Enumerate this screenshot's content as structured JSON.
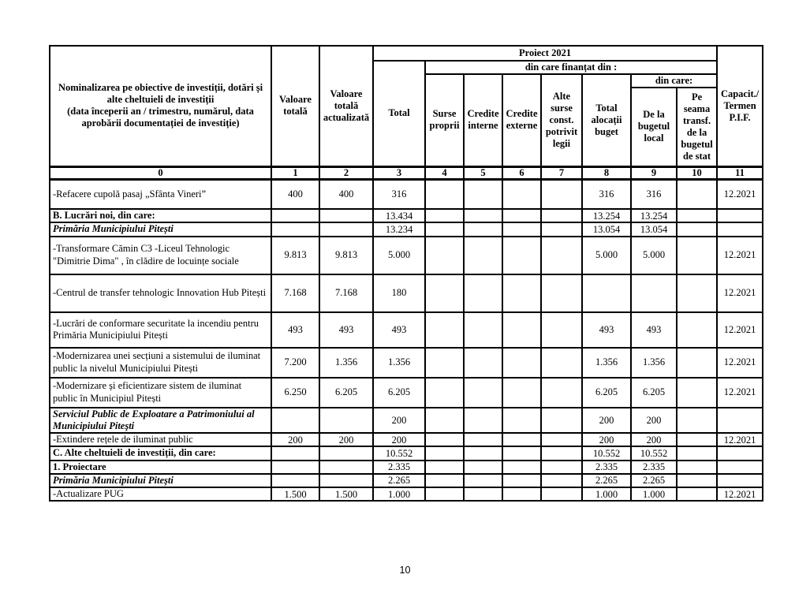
{
  "table": {
    "header": {
      "nominalizarea": "Nominalizarea pe obiective de investiții, dotări și\nalte cheltuieli de investiții\n(data începerii an / trimestru,  numărul, data\naprobării documentației de investiție)",
      "valoare_totala": "Valoare\ntotală",
      "valoare_actualizata": "Valoare\ntotală\nactualizată",
      "proiect_2021": "Proiect 2021",
      "din_care_finantat": "din care finanțat din :",
      "total": "Total",
      "surse_proprii": "Surse\nproprii",
      "credite_interne": "Credite\ninterne",
      "credite_externe": "Credite\nexterne",
      "alte_surse": "Alte\nsurse\nconst.\npotrivit\nlegii",
      "total_alocatii": "Total\nalocații\nbuget",
      "din_care": "din care:",
      "de_la_bugetul_local": "De la\nbugetul\nlocal",
      "pe_seama_transf": "Pe\nseama\ntransf.\nde la\nbugetul\nde stat",
      "capacit_termen": "Capacit./\nTermen\nP.I.F."
    },
    "col_numbers": [
      "0",
      "1",
      "2",
      "3",
      "4",
      "5",
      "6",
      "7",
      "8",
      "9",
      "10",
      "11"
    ],
    "rows": [
      {
        "kind": "item",
        "label": "-Refacere cupolă pasaj „Sfânta Vineri”",
        "cells": [
          "400",
          "400",
          "316",
          "",
          "",
          "",
          "",
          "316",
          "316",
          "",
          "12.2021"
        ]
      },
      {
        "kind": "section",
        "label": "B. Lucrări noi, din care:",
        "cells": [
          "",
          "",
          "13.434",
          "",
          "",
          "",
          "",
          "13.254",
          "13.254",
          "",
          ""
        ]
      },
      {
        "kind": "entity",
        "label": "Primăria Municipiului Pitești",
        "cells": [
          "",
          "",
          "13.234",
          "",
          "",
          "",
          "",
          "13.054",
          "13.054",
          "",
          ""
        ]
      },
      {
        "kind": "item",
        "label": "-Transformare Cămin C3 -Liceul Tehnologic \"Dimitrie Dima\" , în clădire de locuințe sociale",
        "cells": [
          "9.813",
          "9.813",
          "5.000",
          "",
          "",
          "",
          "",
          "5.000",
          "5.000",
          "",
          "12.2021"
        ]
      },
      {
        "kind": "item",
        "label": "-Centrul de transfer tehnologic Innovation Hub Pitești",
        "cells": [
          "7.168",
          "7.168",
          "180",
          "",
          "",
          "",
          "",
          "",
          "",
          "",
          "12.2021"
        ]
      },
      {
        "kind": "item",
        "label": "-Lucrări de conformare securitate la incendiu pentru Primăria Municipiului Pitești",
        "cells": [
          "493",
          "493",
          "493",
          "",
          "",
          "",
          "",
          "493",
          "493",
          "",
          "12.2021"
        ]
      },
      {
        "kind": "item",
        "label": "-Modernizarea unei secțiuni a sistemului de iluminat public la nivelul Municipiului Pitești",
        "cells": [
          "7.200",
          "1.356",
          "1.356",
          "",
          "",
          "",
          "",
          "1.356",
          "1.356",
          "",
          "12.2021"
        ]
      },
      {
        "kind": "item",
        "label": "-Modernizare și eficientizare  sistem de iluminat public în Municipiul Pitești",
        "cells": [
          "6.250",
          "6.205",
          "6.205",
          "",
          "",
          "",
          "",
          "6.205",
          "6.205",
          "",
          "12.2021"
        ]
      },
      {
        "kind": "entity",
        "label": "Serviciul Public de Exploatare a Patrimoniului al Municipiului Piteşti",
        "cells": [
          "",
          "",
          "200",
          "",
          "",
          "",
          "",
          "200",
          "200",
          "",
          ""
        ]
      },
      {
        "kind": "item",
        "label": "-Extindere rețele de iluminat public",
        "cells": [
          "200",
          "200",
          "200",
          "",
          "",
          "",
          "",
          "200",
          "200",
          "",
          "12.2021"
        ]
      },
      {
        "kind": "section",
        "label": "C. Alte cheltuieli de investiții, din care:",
        "cells": [
          "",
          "",
          "10.552",
          "",
          "",
          "",
          "",
          "10.552",
          "10.552",
          "",
          ""
        ]
      },
      {
        "kind": "section",
        "label": "1. Proiectare",
        "cells": [
          "",
          "",
          "2.335",
          "",
          "",
          "",
          "",
          "2.335",
          "2.335",
          "",
          ""
        ]
      },
      {
        "kind": "entity",
        "label": "Primăria Municipiului Piteşti",
        "cells": [
          "",
          "",
          "2.265",
          "",
          "",
          "",
          "",
          "2.265",
          "2.265",
          "",
          ""
        ]
      },
      {
        "kind": "item",
        "label": "-Actualizare PUG",
        "cells": [
          "1.500",
          "1.500",
          "1.000",
          "",
          "",
          "",
          "",
          "1.000",
          "1.000",
          "",
          "12.2021"
        ]
      }
    ]
  },
  "footer": {
    "page_number": "10"
  }
}
